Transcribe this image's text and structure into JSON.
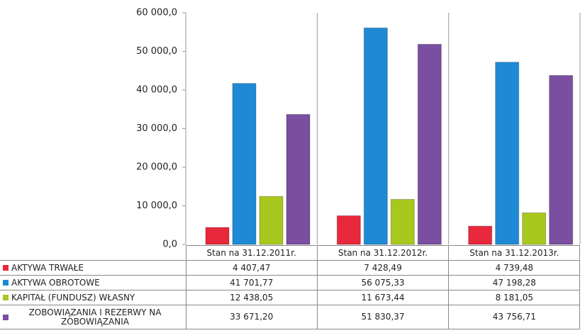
{
  "chart_data": {
    "type": "bar",
    "categories": [
      "Stan na 31.12.2011r.",
      "Stan na 31.12.2012r.",
      "Stan na 31.12.2013r."
    ],
    "series": [
      {
        "name": "AKTYWA TRWAŁE",
        "color": "#e8283c",
        "values": [
          4407.47,
          7428.49,
          4739.48
        ],
        "value_labels": [
          "4 407,47",
          "7 428,49",
          "4 739,48"
        ]
      },
      {
        "name": "AKTYWA OBROTOWE",
        "color": "#1e8ad6",
        "values": [
          41701.77,
          56075.33,
          47198.28
        ],
        "value_labels": [
          "41 701,77",
          "56 075,33",
          "47 198,28"
        ]
      },
      {
        "name": "KAPITAŁ (FUNDUSZ) WŁASNY",
        "color": "#a8c81e",
        "values": [
          12438.05,
          11673.44,
          8181.05
        ],
        "value_labels": [
          "12 438,05",
          "11 673,44",
          "8 181,05"
        ]
      },
      {
        "name": "ZOBOWIĄZANIA I REZERWY NA ZOBOWIĄZANIA",
        "color": "#7a4ea0",
        "values": [
          33671.2,
          51830.37,
          43756.71
        ],
        "value_labels": [
          "33 671,20",
          "51 830,37",
          "43 756,71"
        ]
      }
    ],
    "ylim": [
      0,
      60000
    ],
    "yticks": [
      {
        "value": 0,
        "label": "0,0"
      },
      {
        "value": 10000,
        "label": "10 000,0"
      },
      {
        "value": 20000,
        "label": "20 000,0"
      },
      {
        "value": 30000,
        "label": "30 000,0"
      },
      {
        "value": 40000,
        "label": "40 000,0"
      },
      {
        "value": 50000,
        "label": "50 000,0"
      },
      {
        "value": 60000,
        "label": "60 000,0"
      }
    ]
  }
}
